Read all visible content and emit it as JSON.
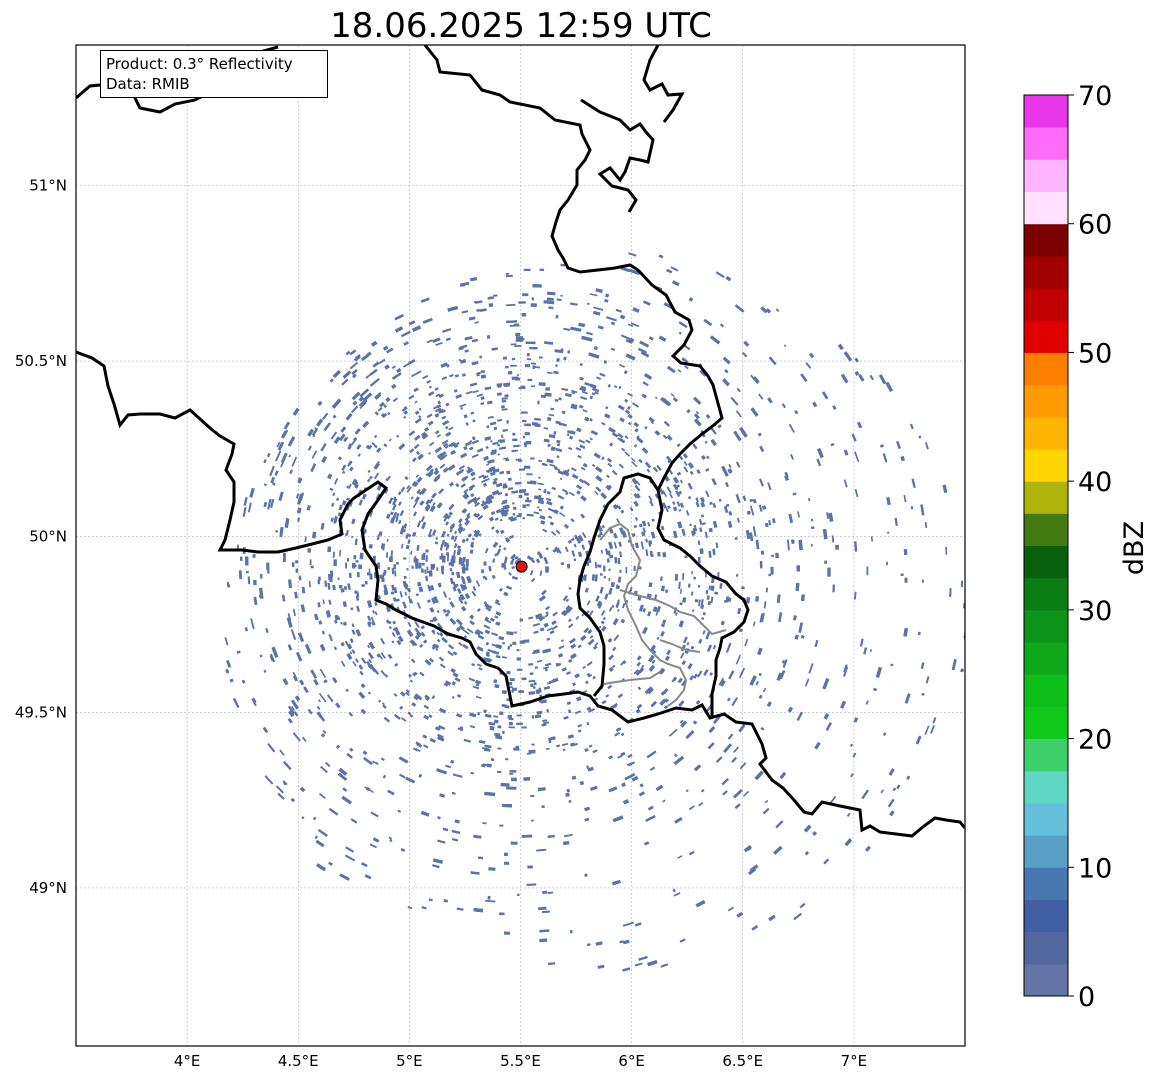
{
  "title": "18.06.2025 12:59 UTC",
  "info_box": {
    "product": "Product: 0.3° Reflectivity",
    "data": "Data: RMIB"
  },
  "map": {
    "lon_range": [
      3.5,
      7.5
    ],
    "lat_range": [
      48.55,
      51.4
    ],
    "lon_ticks": [
      4.0,
      4.5,
      5.0,
      5.5,
      6.0,
      6.5,
      7.0
    ],
    "lon_tick_labels": [
      "4°E",
      "4.5°E",
      "5°E",
      "5.5°E",
      "6°E",
      "6.5°E",
      "7°E"
    ],
    "lat_ticks": [
      49.0,
      49.5,
      50.0,
      50.5,
      51.0
    ],
    "lat_tick_labels": [
      "49°N",
      "49.5°N",
      "50°N",
      "50.5°N",
      "51°N"
    ],
    "gridlines": true,
    "radar_site": {
      "lon": 5.505,
      "lat": 49.915,
      "color": "#e8101a"
    },
    "echo_color": "#5b74a8",
    "border_color": "#000000",
    "region_border_color": "#888888"
  },
  "colorbar": {
    "label": "dBZ",
    "min": 0,
    "max": 70,
    "step": 2.5,
    "ticks": [
      0,
      10,
      20,
      30,
      40,
      50,
      60,
      70
    ],
    "tick_labels": [
      "0",
      "10",
      "20",
      "30",
      "40",
      "50",
      "60",
      "70"
    ],
    "colors": [
      "#6474a6",
      "#53679f",
      "#425fa3",
      "#4877b0",
      "#5aa0c6",
      "#64c0da",
      "#5fd6c4",
      "#3dd06a",
      "#10c91a",
      "#0ebf1a",
      "#0ea81a",
      "#0c951a",
      "#0a7e14",
      "#075f0c",
      "#447a12",
      "#b0b40a",
      "#ffd600",
      "#ffb400",
      "#ff9a00",
      "#ff7e00",
      "#e00000",
      "#c00000",
      "#a00000",
      "#7c0000",
      "#ffe0ff",
      "#ffb4ff",
      "#ff6cf8",
      "#ea36ea"
    ]
  }
}
